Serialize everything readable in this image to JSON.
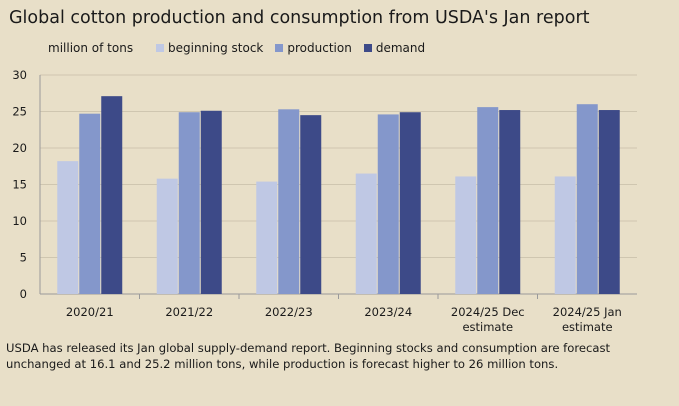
{
  "title": "Global cotton production and consumption from USDA's Jan report",
  "unit_label": "million of tons",
  "caption": "USDA has released its Jan global supply-demand report. Beginning stocks and consumption are forecast unchanged at 16.1 and 25.2 million tons, while production is forecast higher to 26 million tons.",
  "chart_data": {
    "type": "bar",
    "title": "Global cotton production and consumption from USDA's Jan report",
    "ylabel": "million of tons",
    "xlabel": "",
    "categories": [
      [
        "2020/21"
      ],
      [
        "2021/22"
      ],
      [
        "2022/23"
      ],
      [
        "2023/24"
      ],
      [
        "2024/25 Dec",
        "estimate"
      ],
      [
        "2024/25 Jan",
        "estimate"
      ]
    ],
    "series": [
      {
        "name": "beginning stock",
        "color": "#bfc8e4",
        "values": [
          18.2,
          15.8,
          15.4,
          16.5,
          16.1,
          16.1
        ]
      },
      {
        "name": "production",
        "color": "#8497cb",
        "values": [
          24.7,
          24.9,
          25.3,
          24.6,
          25.6,
          26.0
        ]
      },
      {
        "name": "demand",
        "color": "#3d4a88",
        "values": [
          27.1,
          25.1,
          24.5,
          24.9,
          25.2,
          25.2
        ]
      }
    ],
    "ylim": [
      0,
      30
    ],
    "yticks": [
      0,
      5,
      10,
      15,
      20,
      25,
      30
    ],
    "grid": true,
    "legend": "top"
  }
}
